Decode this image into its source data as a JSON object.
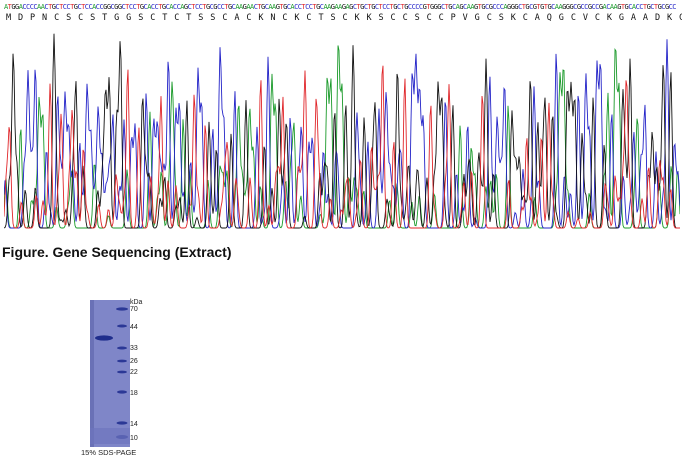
{
  "sequence": {
    "dna": "ATGGACCCCAACTGCTCCTGCTCCACCGGCGGCTCCTGCACCTGCACCAGCTCCTGCGCCTGCAAGAACTGCAAGTGCACCTCCTGCAAGAAGAGCTGCTGCTCCTGCTGCCCCGTGGGCTGCAGCAAGTGCGCCCAGGGCTGCGTGTGCAAGGGCGCCGCCGACAAGTGCACCTGCTGCGCC",
    "amino_acids": "MDPNCSCSTGGSCTCTSSCACKNCKCTSCKKSCCSCCPVGCSKCAQGCVCKGAADKCTCCA"
  },
  "colors": {
    "A": "#1a9a2a",
    "C": "#2424c8",
    "G": "#111111",
    "T": "#e0262a"
  },
  "figure": {
    "caption": "Figure. Gene Sequencing (Extract)"
  },
  "gel": {
    "unit": "kDa",
    "markers": [
      "70",
      "44",
      "33",
      "26",
      "22",
      "18",
      "14",
      "10"
    ],
    "caption": "15% SDS-PAGE"
  }
}
